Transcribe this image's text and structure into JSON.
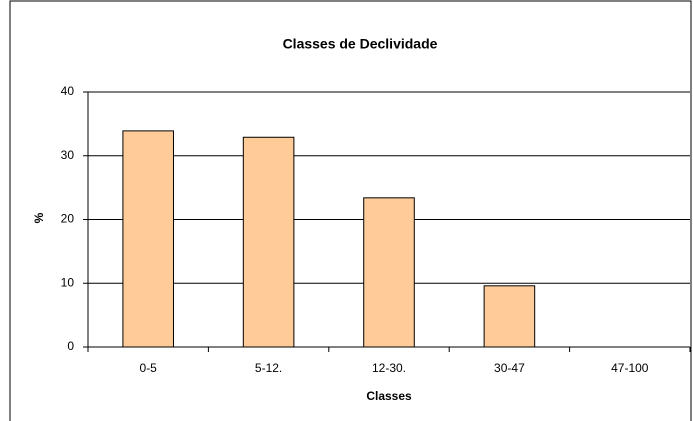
{
  "chart_data": {
    "type": "bar",
    "title": "Classes de Declividade",
    "x_label": "Classes",
    "y_label": "%",
    "categories": [
      "0-5",
      "5-12.",
      "12-30.",
      "30-47",
      "47-100"
    ],
    "values": [
      33.9,
      32.9,
      23.4,
      9.6,
      0
    ],
    "color": "#ffcc99",
    "ylim": [
      0,
      40
    ],
    "yticks": [
      0,
      10,
      20,
      30,
      40
    ],
    "grid": true
  }
}
